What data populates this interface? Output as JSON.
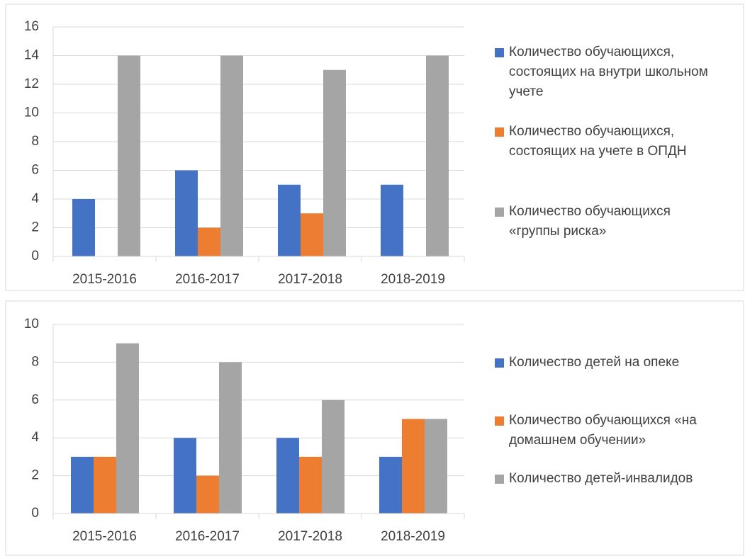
{
  "chart_data": [
    {
      "type": "bar",
      "categories": [
        "2015-2016",
        "2016-2017",
        "2017-2018",
        "2018-2019"
      ],
      "series": [
        {
          "name": "Количество обучающихся, состоящих на внутри школьном учете",
          "color": "#4472c4",
          "values": [
            4,
            6,
            5,
            5
          ]
        },
        {
          "name": "Количество обучающихся, состоящих на учете в ОПДН",
          "color": "#ed7d31",
          "values": [
            0,
            2,
            3,
            0
          ]
        },
        {
          "name": "Количество обучающихся «группы риска»",
          "color": "#a5a5a5",
          "values": [
            14,
            14,
            13,
            14
          ]
        }
      ],
      "ylim": [
        0,
        16
      ],
      "yticks": [
        0,
        2,
        4,
        6,
        8,
        10,
        12,
        14,
        16
      ],
      "grid": true,
      "legend": "right"
    },
    {
      "type": "bar",
      "categories": [
        "2015-2016",
        "2016-2017",
        "2017-2018",
        "2018-2019"
      ],
      "series": [
        {
          "name": "Количество детей на опеке",
          "color": "#4472c4",
          "values": [
            3,
            4,
            4,
            3
          ]
        },
        {
          "name": "Количество обучающихся «на домашнем обучении»",
          "color": "#ed7d31",
          "values": [
            3,
            2,
            3,
            5
          ]
        },
        {
          "name": "Количество детей-инвалидов",
          "color": "#a5a5a5",
          "values": [
            9,
            8,
            6,
            5
          ]
        }
      ],
      "ylim": [
        0,
        10
      ],
      "yticks": [
        0,
        2,
        4,
        6,
        8,
        10
      ],
      "grid": true,
      "legend": "right"
    }
  ]
}
